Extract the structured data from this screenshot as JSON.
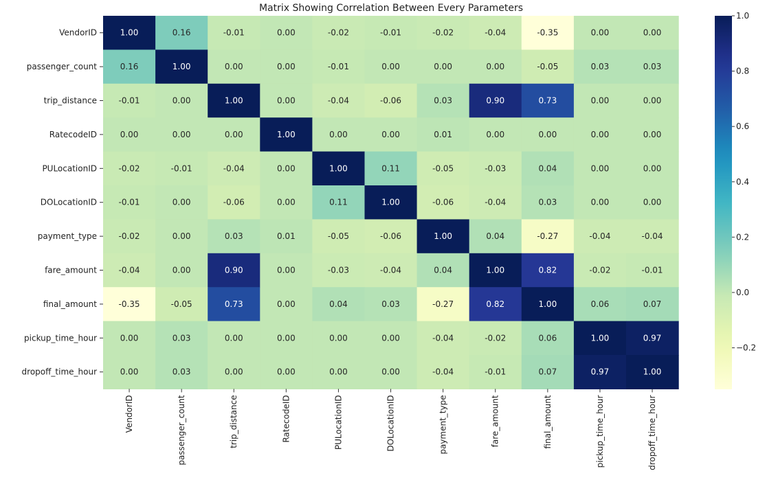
{
  "chart_data": {
    "type": "heatmap",
    "title": "Matrix Showing Correlation Between Every Parameters",
    "xlabel": "",
    "ylabel": "",
    "rows": [
      "VendorID",
      "passenger_count",
      "trip_distance",
      "RatecodeID",
      "PULocationID",
      "DOLocationID",
      "payment_type",
      "fare_amount",
      "final_amount",
      "pickup_time_hour",
      "dropoff_time_hour"
    ],
    "columns": [
      "VendorID",
      "passenger_count",
      "trip_distance",
      "RatecodeID",
      "PULocationID",
      "DOLocationID",
      "payment_type",
      "fare_amount",
      "final_amount",
      "pickup_time_hour",
      "dropoff_time_hour"
    ],
    "values": [
      [
        1.0,
        0.16,
        -0.01,
        0.0,
        -0.02,
        -0.01,
        -0.02,
        -0.04,
        -0.35,
        0.0,
        0.0
      ],
      [
        0.16,
        1.0,
        0.0,
        -0.0,
        -0.01,
        -0.0,
        -0.0,
        -0.0,
        -0.05,
        0.03,
        0.03
      ],
      [
        -0.01,
        0.0,
        1.0,
        0.0,
        -0.04,
        -0.06,
        0.03,
        0.9,
        0.73,
        0.0,
        0.0
      ],
      [
        0.0,
        -0.0,
        0.0,
        1.0,
        0.0,
        -0.0,
        0.01,
        0.0,
        -0.0,
        -0.0,
        -0.0
      ],
      [
        -0.02,
        -0.01,
        -0.04,
        0.0,
        1.0,
        0.11,
        -0.05,
        -0.03,
        0.04,
        -0.0,
        -0.0
      ],
      [
        -0.01,
        -0.0,
        -0.06,
        -0.0,
        0.11,
        1.0,
        -0.06,
        -0.04,
        0.03,
        0.0,
        0.0
      ],
      [
        -0.02,
        -0.0,
        0.03,
        0.01,
        -0.05,
        -0.06,
        1.0,
        0.04,
        -0.27,
        -0.04,
        -0.04
      ],
      [
        -0.04,
        -0.0,
        0.9,
        0.0,
        -0.03,
        -0.04,
        0.04,
        1.0,
        0.82,
        -0.02,
        -0.01
      ],
      [
        -0.35,
        -0.05,
        0.73,
        -0.0,
        0.04,
        0.03,
        -0.27,
        0.82,
        1.0,
        0.06,
        0.07
      ],
      [
        0.0,
        0.03,
        0.0,
        -0.0,
        -0.0,
        0.0,
        -0.04,
        -0.02,
        0.06,
        1.0,
        0.97
      ],
      [
        0.0,
        0.03,
        0.0,
        -0.0,
        -0.0,
        0.0,
        -0.04,
        -0.01,
        0.07,
        0.97,
        1.0
      ]
    ],
    "value_format": "0.00",
    "colormap": "YlGnBu",
    "colorbar": {
      "range": [
        -0.35,
        1.0
      ],
      "ticks": [
        -0.2,
        0.0,
        0.2,
        0.4,
        0.6,
        0.8,
        1.0
      ],
      "tick_labels": [
        "−0.2",
        "0.0",
        "0.2",
        "0.4",
        "0.6",
        "0.8",
        "1.0"
      ]
    },
    "grid": false,
    "x_tick_rotation": "vertical"
  }
}
